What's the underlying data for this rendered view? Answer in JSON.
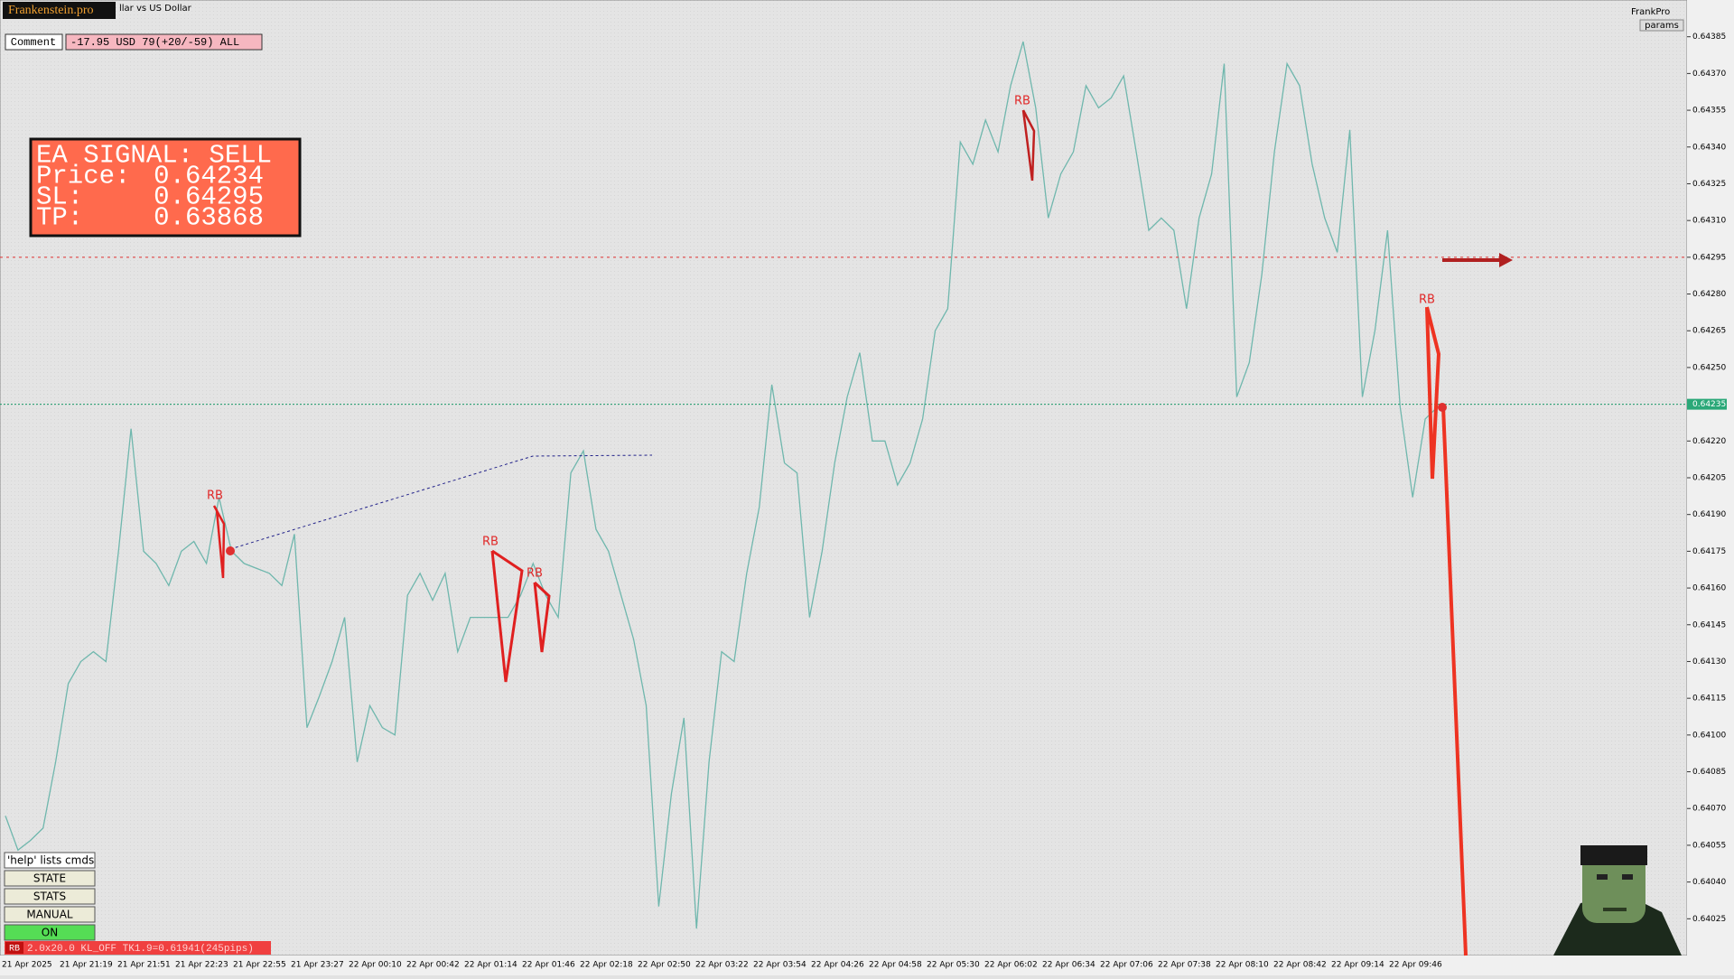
{
  "header": {
    "logo": "Frankenstein.pro",
    "title": "llar vs US Dollar",
    "brand": "FrankPro",
    "params": "params"
  },
  "comment": {
    "label": "Comment",
    "text": "-17.95 USD 79(+20/-59) ALL"
  },
  "signal": {
    "title": "EA SIGNAL: SELL",
    "price_label": "Price:",
    "price": 0.64234,
    "sl_label": "SL:",
    "sl": 0.64295,
    "tp_label": "TP:",
    "tp": 0.63868
  },
  "buttons": [
    "'help' lists cmds",
    "STATE",
    "STATS",
    "MANUAL",
    "ON"
  ],
  "status": {
    "tag": "RB",
    "text": "2.0x20.0 KL_OFF TK1.9=0.61941(245pips)"
  },
  "chart": {
    "ylim": [
      0.6401,
      0.644
    ],
    "yticks": [
      0.64385,
      {
        "value": 0.6437,
        "label": "0.64370"
      },
      0.64355,
      {
        "value": 0.6434,
        "label": "0.64340"
      },
      0.64325,
      {
        "value": 0.6431,
        "label": "0.64310"
      },
      0.64295,
      {
        "value": 0.6428,
        "label": "0.64280"
      },
      0.64265,
      {
        "value": 0.6425,
        "label": "0.64250"
      },
      {
        "value": 0.6422,
        "label": "0.64220"
      },
      0.64205,
      {
        "value": 0.6419,
        "label": "0.64190"
      },
      0.64175,
      {
        "value": 0.6416,
        "label": "0.64160"
      },
      0.64145,
      {
        "value": 0.6413,
        "label": "0.64130"
      },
      0.64115,
      {
        "value": 0.641,
        "label": "0.64100"
      },
      0.64085,
      {
        "value": 0.6407,
        "label": "0.64070"
      },
      0.64055,
      {
        "value": 0.6404,
        "label": "0.64040"
      },
      0.64025
    ],
    "current_price": 0.64235,
    "time_labels": [
      "21 Apr 2025",
      "21 Apr 21:19",
      "21 Apr 21:51",
      "21 Apr 22:23",
      "21 Apr 22:55",
      "21 Apr 23:27",
      "22 Apr 00:10",
      "22 Apr 00:42",
      "22 Apr 01:14",
      "22 Apr 01:46",
      "22 Apr 02:18",
      "22 Apr 02:50",
      "22 Apr 03:22",
      "22 Apr 03:54",
      "22 Apr 04:26",
      "22 Apr 04:58",
      "22 Apr 05:30",
      "22 Apr 06:02",
      "22 Apr 06:34",
      "22 Apr 07:06",
      "22 Apr 07:38",
      "22 Apr 08:10",
      "22 Apr 08:42",
      "22 Apr 09:14",
      "22 Apr 09:46"
    ],
    "annotations": [
      "RB",
      "RB",
      "RB",
      "RB",
      "RB"
    ],
    "price": {
      "values": [
        0.64067,
        0.64053,
        0.64057,
        0.64062,
        0.64089,
        0.64121,
        0.6413,
        0.64134,
        0.6413,
        0.64175,
        0.64225,
        0.64175,
        0.6417,
        0.64161,
        0.64175,
        0.64179,
        0.6417,
        0.64197,
        0.64175,
        0.6417,
        0.64168,
        0.64166,
        0.64161,
        0.64182,
        0.64103,
        0.64116,
        0.6413,
        0.64148,
        0.64089,
        0.64112,
        0.64103,
        0.641,
        0.64157,
        0.64166,
        0.64155,
        0.64166,
        0.64134,
        0.64148,
        0.64148,
        0.64148,
        0.64148,
        0.64157,
        0.6417,
        0.64157,
        0.64148,
        0.64207,
        0.64216,
        0.64184,
        0.64175,
        0.64157,
        0.64139,
        0.64112,
        0.6403,
        0.64076,
        0.64107,
        0.64021,
        0.64089,
        0.64134,
        0.6413,
        0.64166,
        0.64193,
        0.64243,
        0.64211,
        0.64207,
        0.64148,
        0.64175,
        0.64211,
        0.64238,
        0.64256,
        0.6422,
        0.6422,
        0.64202,
        0.64211,
        0.64229,
        0.64265,
        0.64274,
        0.64342,
        0.64333,
        0.64351,
        0.64338,
        0.64365,
        0.64383,
        0.64356,
        0.64311,
        0.64329,
        0.64338,
        0.64365,
        0.64356,
        0.6436,
        0.64369,
        0.64338,
        0.64306,
        0.64311,
        0.64306,
        0.64274,
        0.64311,
        0.64329,
        0.64374,
        0.64238,
        0.64252,
        0.64288,
        0.64338,
        0.64374,
        0.64365,
        0.64333,
        0.64311,
        0.64297,
        0.64347,
        0.64238,
        0.64265,
        0.64306,
        0.64234,
        0.64197,
        0.64229,
        0.64234
      ]
    }
  }
}
